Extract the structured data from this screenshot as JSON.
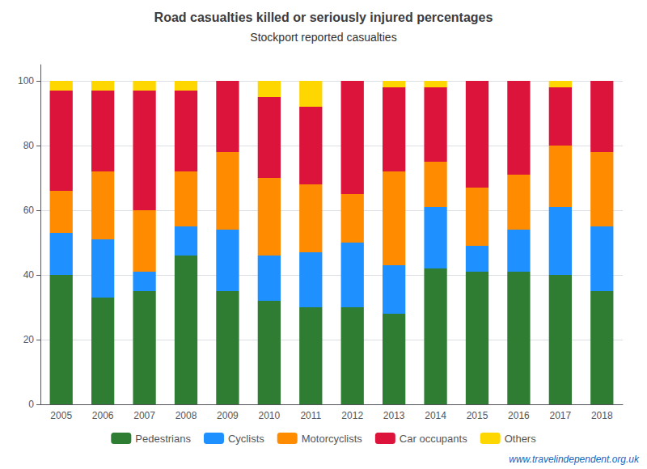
{
  "chart_data": {
    "type": "bar",
    "stacked": true,
    "title": "Road casualties killed or seriously injured percentages",
    "subtitle": "Stockport reported casualties",
    "annotations": [
      "www.travelindependent.org.uk"
    ],
    "categories": [
      "2005",
      "2006",
      "2007",
      "2008",
      "2009",
      "2010",
      "2011",
      "2012",
      "2013",
      "2014",
      "2015",
      "2016",
      "2017",
      "2018"
    ],
    "series": [
      {
        "name": "Pedestrians",
        "color": "#2e7d32",
        "values": [
          40,
          33,
          35,
          46,
          35,
          32,
          30,
          30,
          28,
          42,
          41,
          41,
          40,
          35
        ]
      },
      {
        "name": "Cyclists",
        "color": "#1e90ff",
        "values": [
          13,
          18,
          6,
          9,
          19,
          14,
          17,
          20,
          15,
          19,
          8,
          13,
          21,
          20
        ]
      },
      {
        "name": "Motorcyclists",
        "color": "#ff8c00",
        "values": [
          13,
          21,
          19,
          17,
          24,
          24,
          21,
          15,
          29,
          14,
          18,
          17,
          19,
          23
        ]
      },
      {
        "name": "Car occupants",
        "color": "#dc143c",
        "values": [
          31,
          25,
          37,
          25,
          22,
          25,
          24,
          35,
          26,
          23,
          33,
          29,
          18,
          22
        ]
      },
      {
        "name": "Others",
        "color": "#ffd700",
        "values": [
          3,
          3,
          3,
          3,
          0,
          5,
          8,
          0,
          2,
          2,
          0,
          0,
          2,
          0
        ]
      }
    ],
    "ylim": [
      0,
      105
    ],
    "yticks": [
      0,
      20,
      40,
      60,
      80,
      100
    ],
    "grid": true,
    "legend": "bottom"
  }
}
